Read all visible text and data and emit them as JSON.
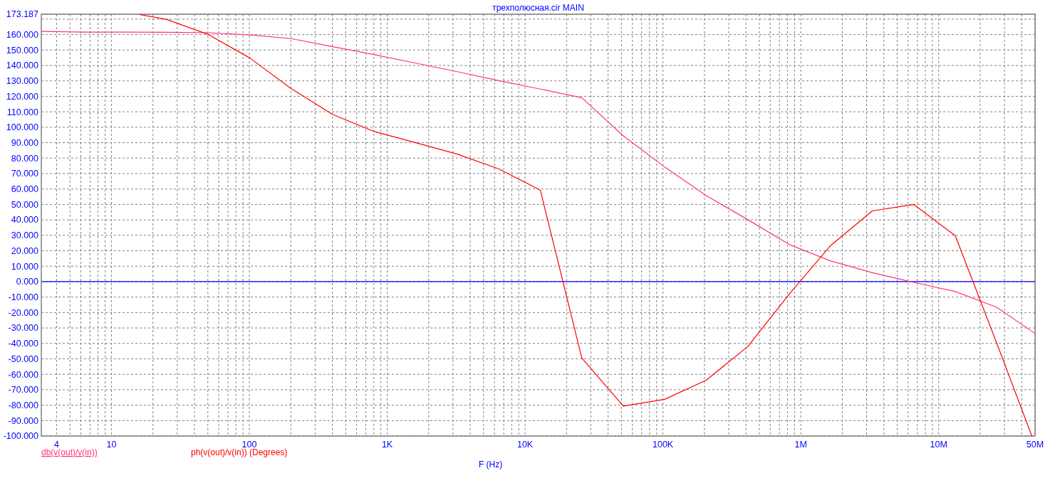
{
  "chart_data": {
    "type": "line",
    "title": "трехполюсная.cir MAIN",
    "xlabel": "F (Hz)",
    "log": "x",
    "grid": true,
    "legend": "bottom left",
    "xlim": [
      3.1,
      50000000
    ],
    "xticks": [
      4,
      {
        "value": 5,
        "label": null
      },
      {
        "value": 6,
        "label": null
      },
      {
        "value": 7,
        "label": null
      },
      {
        "value": 8,
        "label": null
      },
      {
        "value": 9,
        "label": null
      },
      10,
      {
        "value": 20,
        "label": null
      },
      {
        "value": 30,
        "label": null
      },
      {
        "value": 40,
        "label": null
      },
      {
        "value": 50,
        "label": null
      },
      {
        "value": 60,
        "label": null
      },
      {
        "value": 70,
        "label": null
      },
      {
        "value": 80,
        "label": null
      },
      {
        "value": 90,
        "label": null
      },
      100,
      {
        "value": 200,
        "label": null
      },
      {
        "value": 300,
        "label": null
      },
      {
        "value": 400,
        "label": null
      },
      {
        "value": 500,
        "label": null
      },
      {
        "value": 600,
        "label": null
      },
      {
        "value": 700,
        "label": null
      },
      {
        "value": 800,
        "label": null
      },
      {
        "value": 900,
        "label": null
      },
      {
        "value": 1000,
        "label": "1K"
      },
      {
        "value": 2000,
        "label": null
      },
      {
        "value": 3000,
        "label": null
      },
      {
        "value": 4000,
        "label": null
      },
      {
        "value": 5000,
        "label": null
      },
      {
        "value": 6000,
        "label": null
      },
      {
        "value": 7000,
        "label": null
      },
      {
        "value": 8000,
        "label": null
      },
      {
        "value": 9000,
        "label": null
      },
      {
        "value": 10000,
        "label": "10K"
      },
      {
        "value": 20000,
        "label": null
      },
      {
        "value": 30000,
        "label": null
      },
      {
        "value": 40000,
        "label": null
      },
      {
        "value": 50000,
        "label": null
      },
      {
        "value": 60000,
        "label": null
      },
      {
        "value": 70000,
        "label": null
      },
      {
        "value": 80000,
        "label": null
      },
      {
        "value": 90000,
        "label": null
      },
      {
        "value": 100000,
        "label": "100K"
      },
      {
        "value": 200000,
        "label": null
      },
      {
        "value": 300000,
        "label": null
      },
      {
        "value": 400000,
        "label": null
      },
      {
        "value": 500000,
        "label": null
      },
      {
        "value": 600000,
        "label": null
      },
      {
        "value": 700000,
        "label": null
      },
      {
        "value": 800000,
        "label": null
      },
      {
        "value": 900000,
        "label": null
      },
      {
        "value": 1000000,
        "label": "1M"
      },
      {
        "value": 2000000,
        "label": null
      },
      {
        "value": 3000000,
        "label": null
      },
      {
        "value": 4000000,
        "label": null
      },
      {
        "value": 5000000,
        "label": null
      },
      {
        "value": 6000000,
        "label": null
      },
      {
        "value": 7000000,
        "label": null
      },
      {
        "value": 8000000,
        "label": null
      },
      {
        "value": 9000000,
        "label": null
      },
      {
        "value": 10000000,
        "label": "10M"
      },
      {
        "value": 20000000,
        "label": null
      },
      {
        "value": 30000000,
        "label": null
      },
      {
        "value": 40000000,
        "label": null
      },
      {
        "value": 50000000,
        "label": "50M"
      }
    ],
    "ylim": [
      -100,
      173.187
    ],
    "yticks": [
      {
        "value": -100,
        "label": "-100.000"
      },
      {
        "value": -90,
        "label": "-90.000"
      },
      {
        "value": -80,
        "label": "-80.000"
      },
      {
        "value": -70,
        "label": "-70.000"
      },
      {
        "value": -60,
        "label": "-60.000"
      },
      {
        "value": -50,
        "label": "-50.000"
      },
      {
        "value": -40,
        "label": "-40.000"
      },
      {
        "value": -30,
        "label": "-30.000"
      },
      {
        "value": -20,
        "label": "-20.000"
      },
      {
        "value": -10,
        "label": "-10.000"
      },
      {
        "value": 0,
        "label": "0.000"
      },
      {
        "value": 10,
        "label": "10.000"
      },
      {
        "value": 20,
        "label": "20.000"
      },
      {
        "value": 30,
        "label": "30.000"
      },
      {
        "value": 40,
        "label": "40.000"
      },
      {
        "value": 50,
        "label": "50.000"
      },
      {
        "value": 60,
        "label": "60.000"
      },
      {
        "value": 70,
        "label": "70.000"
      },
      {
        "value": 80,
        "label": "80.000"
      },
      {
        "value": 90,
        "label": "90.000"
      },
      {
        "value": 100,
        "label": "100.000"
      },
      {
        "value": 110,
        "label": "110.000"
      },
      {
        "value": 120,
        "label": "120.000"
      },
      {
        "value": 130,
        "label": "130.000"
      },
      {
        "value": 140,
        "label": "140.000"
      },
      {
        "value": 150,
        "label": "150.000"
      },
      {
        "value": 160,
        "label": "160.000"
      },
      {
        "value": 170,
        "label": null
      },
      173.187
    ],
    "ref_lines": [
      {
        "axis": "y",
        "value": 0,
        "color": "#0000ff"
      }
    ],
    "series": [
      {
        "name": "db(v(out)/v(in))",
        "color": "#ff3377",
        "x": [
          3.1,
          6.3,
          12.6,
          25.2,
          50.4,
          101,
          201,
          403,
          806,
          1610,
          3220,
          6450,
          12900,
          25800,
          51600,
          103000,
          206000,
          413000,
          825000,
          1650000,
          3300000,
          6600000,
          13200000,
          26400000,
          50000000
        ],
        "values": [
          162.1,
          161.6,
          161.6,
          161.5,
          161.2,
          159.8,
          157.4,
          152.2,
          147,
          141.5,
          136,
          130.2,
          124.7,
          119.1,
          94.4,
          74.2,
          55.7,
          40.1,
          24,
          13.4,
          5.8,
          -0.5,
          -6.4,
          -16.6,
          -33.6
        ]
      },
      {
        "name": "ph(v(out)/v(in)) (Degrees)",
        "color": "#ff0000",
        "x": [
          16,
          25.2,
          50.4,
          101,
          201,
          403,
          806,
          1610,
          3220,
          6450,
          12900,
          25800,
          51600,
          103000,
          206000,
          413000,
          825000,
          1650000,
          3300000,
          6600000,
          13200000,
          26400000,
          47400000
        ],
        "values": [
          173,
          169.8,
          160.1,
          144.8,
          125,
          108.2,
          97.2,
          90,
          82.6,
          73,
          59.3,
          -49.5,
          -80.6,
          -76.2,
          -63.8,
          -42,
          -8,
          23.5,
          45.8,
          50,
          29.7,
          -40,
          -100
        ]
      }
    ]
  }
}
